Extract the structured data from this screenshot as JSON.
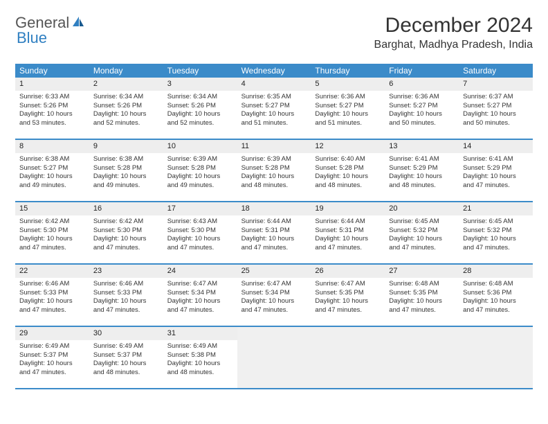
{
  "logo": {
    "general": "General",
    "blue": "Blue"
  },
  "header": {
    "title": "December 2024",
    "location": "Barghat, Madhya Pradesh, India"
  },
  "weekdays": [
    "Sunday",
    "Monday",
    "Tuesday",
    "Wednesday",
    "Thursday",
    "Friday",
    "Saturday"
  ],
  "style": {
    "header_bg": "#3b8bc9",
    "header_fg": "#ffffff",
    "daynum_bg": "#eeeeee",
    "row_border": "#3b8bc9",
    "text_color": "#333333",
    "logo_gray": "#555555",
    "logo_blue": "#2f7fc1",
    "title_fontsize": 30,
    "location_fontsize": 16,
    "weekday_fontsize": 12,
    "body_fontsize": 9.5
  },
  "days": [
    {
      "n": "1",
      "sunrise": "Sunrise: 6:33 AM",
      "sunset": "Sunset: 5:26 PM",
      "daylight": "Daylight: 10 hours and 53 minutes."
    },
    {
      "n": "2",
      "sunrise": "Sunrise: 6:34 AM",
      "sunset": "Sunset: 5:26 PM",
      "daylight": "Daylight: 10 hours and 52 minutes."
    },
    {
      "n": "3",
      "sunrise": "Sunrise: 6:34 AM",
      "sunset": "Sunset: 5:26 PM",
      "daylight": "Daylight: 10 hours and 52 minutes."
    },
    {
      "n": "4",
      "sunrise": "Sunrise: 6:35 AM",
      "sunset": "Sunset: 5:27 PM",
      "daylight": "Daylight: 10 hours and 51 minutes."
    },
    {
      "n": "5",
      "sunrise": "Sunrise: 6:36 AM",
      "sunset": "Sunset: 5:27 PM",
      "daylight": "Daylight: 10 hours and 51 minutes."
    },
    {
      "n": "6",
      "sunrise": "Sunrise: 6:36 AM",
      "sunset": "Sunset: 5:27 PM",
      "daylight": "Daylight: 10 hours and 50 minutes."
    },
    {
      "n": "7",
      "sunrise": "Sunrise: 6:37 AM",
      "sunset": "Sunset: 5:27 PM",
      "daylight": "Daylight: 10 hours and 50 minutes."
    },
    {
      "n": "8",
      "sunrise": "Sunrise: 6:38 AM",
      "sunset": "Sunset: 5:27 PM",
      "daylight": "Daylight: 10 hours and 49 minutes."
    },
    {
      "n": "9",
      "sunrise": "Sunrise: 6:38 AM",
      "sunset": "Sunset: 5:28 PM",
      "daylight": "Daylight: 10 hours and 49 minutes."
    },
    {
      "n": "10",
      "sunrise": "Sunrise: 6:39 AM",
      "sunset": "Sunset: 5:28 PM",
      "daylight": "Daylight: 10 hours and 49 minutes."
    },
    {
      "n": "11",
      "sunrise": "Sunrise: 6:39 AM",
      "sunset": "Sunset: 5:28 PM",
      "daylight": "Daylight: 10 hours and 48 minutes."
    },
    {
      "n": "12",
      "sunrise": "Sunrise: 6:40 AM",
      "sunset": "Sunset: 5:28 PM",
      "daylight": "Daylight: 10 hours and 48 minutes."
    },
    {
      "n": "13",
      "sunrise": "Sunrise: 6:41 AM",
      "sunset": "Sunset: 5:29 PM",
      "daylight": "Daylight: 10 hours and 48 minutes."
    },
    {
      "n": "14",
      "sunrise": "Sunrise: 6:41 AM",
      "sunset": "Sunset: 5:29 PM",
      "daylight": "Daylight: 10 hours and 47 minutes."
    },
    {
      "n": "15",
      "sunrise": "Sunrise: 6:42 AM",
      "sunset": "Sunset: 5:30 PM",
      "daylight": "Daylight: 10 hours and 47 minutes."
    },
    {
      "n": "16",
      "sunrise": "Sunrise: 6:42 AM",
      "sunset": "Sunset: 5:30 PM",
      "daylight": "Daylight: 10 hours and 47 minutes."
    },
    {
      "n": "17",
      "sunrise": "Sunrise: 6:43 AM",
      "sunset": "Sunset: 5:30 PM",
      "daylight": "Daylight: 10 hours and 47 minutes."
    },
    {
      "n": "18",
      "sunrise": "Sunrise: 6:44 AM",
      "sunset": "Sunset: 5:31 PM",
      "daylight": "Daylight: 10 hours and 47 minutes."
    },
    {
      "n": "19",
      "sunrise": "Sunrise: 6:44 AM",
      "sunset": "Sunset: 5:31 PM",
      "daylight": "Daylight: 10 hours and 47 minutes."
    },
    {
      "n": "20",
      "sunrise": "Sunrise: 6:45 AM",
      "sunset": "Sunset: 5:32 PM",
      "daylight": "Daylight: 10 hours and 47 minutes."
    },
    {
      "n": "21",
      "sunrise": "Sunrise: 6:45 AM",
      "sunset": "Sunset: 5:32 PM",
      "daylight": "Daylight: 10 hours and 47 minutes."
    },
    {
      "n": "22",
      "sunrise": "Sunrise: 6:46 AM",
      "sunset": "Sunset: 5:33 PM",
      "daylight": "Daylight: 10 hours and 47 minutes."
    },
    {
      "n": "23",
      "sunrise": "Sunrise: 6:46 AM",
      "sunset": "Sunset: 5:33 PM",
      "daylight": "Daylight: 10 hours and 47 minutes."
    },
    {
      "n": "24",
      "sunrise": "Sunrise: 6:47 AM",
      "sunset": "Sunset: 5:34 PM",
      "daylight": "Daylight: 10 hours and 47 minutes."
    },
    {
      "n": "25",
      "sunrise": "Sunrise: 6:47 AM",
      "sunset": "Sunset: 5:34 PM",
      "daylight": "Daylight: 10 hours and 47 minutes."
    },
    {
      "n": "26",
      "sunrise": "Sunrise: 6:47 AM",
      "sunset": "Sunset: 5:35 PM",
      "daylight": "Daylight: 10 hours and 47 minutes."
    },
    {
      "n": "27",
      "sunrise": "Sunrise: 6:48 AM",
      "sunset": "Sunset: 5:35 PM",
      "daylight": "Daylight: 10 hours and 47 minutes."
    },
    {
      "n": "28",
      "sunrise": "Sunrise: 6:48 AM",
      "sunset": "Sunset: 5:36 PM",
      "daylight": "Daylight: 10 hours and 47 minutes."
    },
    {
      "n": "29",
      "sunrise": "Sunrise: 6:49 AM",
      "sunset": "Sunset: 5:37 PM",
      "daylight": "Daylight: 10 hours and 47 minutes."
    },
    {
      "n": "30",
      "sunrise": "Sunrise: 6:49 AM",
      "sunset": "Sunset: 5:37 PM",
      "daylight": "Daylight: 10 hours and 48 minutes."
    },
    {
      "n": "31",
      "sunrise": "Sunrise: 6:49 AM",
      "sunset": "Sunset: 5:38 PM",
      "daylight": "Daylight: 10 hours and 48 minutes."
    }
  ]
}
